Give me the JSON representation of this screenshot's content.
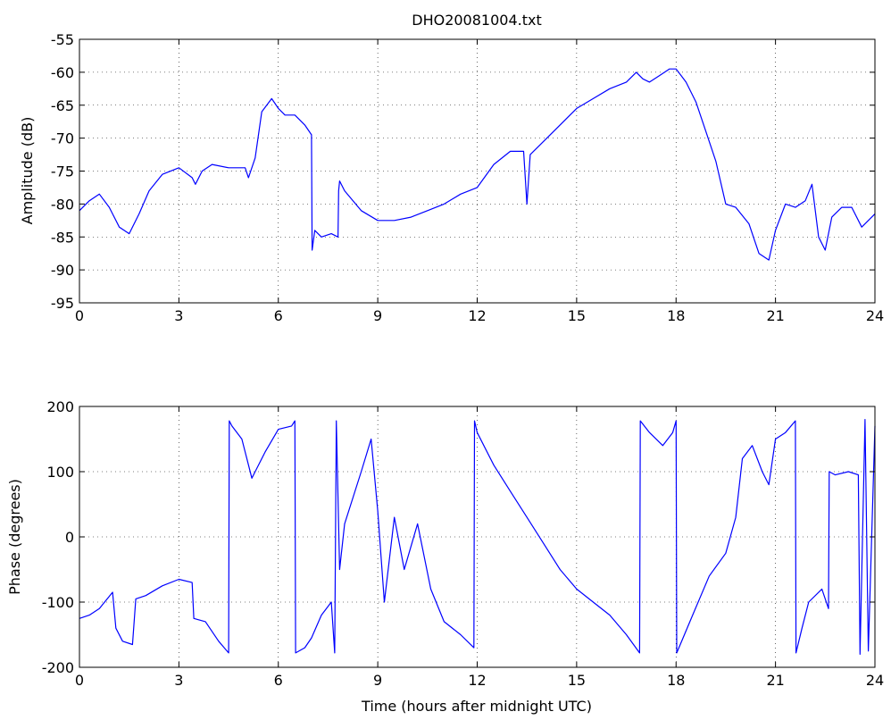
{
  "chart_data": [
    {
      "type": "line",
      "title": "DHO20081004.txt",
      "xlabel": "",
      "ylabel": "Amplitude (dB)",
      "xlim": [
        0,
        24
      ],
      "ylim": [
        -95,
        -55
      ],
      "xticks": [
        "0",
        "3",
        "6",
        "9",
        "12",
        "15",
        "18",
        "21",
        "24"
      ],
      "yticks": [
        "-95",
        "-90",
        "-85",
        "-80",
        "-75",
        "-70",
        "-65",
        "-60",
        "-55"
      ],
      "grid": true,
      "line_color": "#0000ff",
      "x": [
        0,
        0.3,
        0.6,
        0.9,
        1.2,
        1.5,
        1.8,
        2.1,
        2.5,
        3.0,
        3.4,
        3.5,
        3.7,
        4.0,
        4.5,
        5.0,
        5.1,
        5.3,
        5.5,
        5.8,
        6.0,
        6.2,
        6.5,
        6.8,
        7.0,
        7.02,
        7.1,
        7.3,
        7.6,
        7.8,
        7.82,
        7.85,
        8.0,
        8.5,
        9.0,
        9.5,
        10.0,
        10.5,
        11.0,
        11.5,
        12.0,
        12.5,
        13.0,
        13.4,
        13.5,
        13.6,
        14.0,
        14.5,
        15.0,
        15.5,
        16.0,
        16.5,
        16.8,
        17.0,
        17.2,
        17.5,
        17.8,
        18.0,
        18.3,
        18.6,
        18.9,
        19.2,
        19.5,
        19.8,
        20.2,
        20.5,
        20.8,
        21.0,
        21.3,
        21.6,
        21.9,
        22.1,
        22.3,
        22.5,
        22.7,
        23.0,
        23.3,
        23.6,
        24.0
      ],
      "y": [
        -81,
        -79.5,
        -78.5,
        -80.5,
        -83.5,
        -84.5,
        -81.5,
        -78,
        -75.5,
        -74.5,
        -76,
        -77,
        -75,
        -74,
        -74.5,
        -74.5,
        -76,
        -73,
        -66,
        -64,
        -65.5,
        -66.5,
        -66.5,
        -68,
        -69.5,
        -87,
        -84,
        -85,
        -84.5,
        -85,
        -78,
        -76.5,
        -78,
        -81,
        -82.5,
        -82.5,
        -82,
        -81,
        -80,
        -78.5,
        -77.5,
        -74,
        -72,
        -72,
        -80,
        -72.5,
        -70.5,
        -68,
        -65.5,
        -64,
        -62.5,
        -61.5,
        -60,
        -61,
        -61.5,
        -60.5,
        -59.5,
        -59.5,
        -61.5,
        -64.5,
        -69,
        -73.5,
        -80,
        -80.5,
        -83,
        -87.5,
        -88.5,
        -84,
        -80,
        -80.5,
        -79.5,
        -77,
        -85,
        -87,
        -82,
        -80.5,
        -80.5,
        -83.5,
        -81.5
      ]
    },
    {
      "type": "line",
      "title": "",
      "xlabel": "Time (hours after midnight UTC)",
      "ylabel": "Phase (degrees)",
      "xlim": [
        0,
        24
      ],
      "ylim": [
        -200,
        200
      ],
      "xticks": [
        "0",
        "3",
        "6",
        "9",
        "12",
        "15",
        "18",
        "21",
        "24"
      ],
      "yticks": [
        "-200",
        "-100",
        "0",
        "100",
        "200"
      ],
      "grid": true,
      "line_color": "#0000ff",
      "x": [
        0,
        0.3,
        0.6,
        1.0,
        1.1,
        1.3,
        1.6,
        1.7,
        2.0,
        2.5,
        3.0,
        3.4,
        3.45,
        3.8,
        4.2,
        4.5,
        4.52,
        4.6,
        4.9,
        5.2,
        5.3,
        5.6,
        6.0,
        6.4,
        6.5,
        6.52,
        6.8,
        7.0,
        7.3,
        7.6,
        7.7,
        7.75,
        7.85,
        8.0,
        8.5,
        8.8,
        9.0,
        9.2,
        9.5,
        9.8,
        10.2,
        10.6,
        11.0,
        11.5,
        11.9,
        11.92,
        12.0,
        12.5,
        13.0,
        13.5,
        14.0,
        14.5,
        15.0,
        15.5,
        16.0,
        16.5,
        16.9,
        16.92,
        17.2,
        17.6,
        17.9,
        18.0,
        18.02,
        18.5,
        19.0,
        19.5,
        19.8,
        20.0,
        20.3,
        20.6,
        20.8,
        21.0,
        21.3,
        21.6,
        21.62,
        21.8,
        22.0,
        22.4,
        22.6,
        22.62,
        22.8,
        23.2,
        23.5,
        23.55,
        23.7,
        23.8,
        24.0
      ],
      "y": [
        -125,
        -120,
        -110,
        -85,
        -140,
        -160,
        -165,
        -95,
        -90,
        -75,
        -65,
        -70,
        -125,
        -130,
        -160,
        -178,
        178,
        170,
        150,
        90,
        100,
        130,
        165,
        170,
        178,
        -178,
        -170,
        -155,
        -120,
        -100,
        -178,
        178,
        -50,
        20,
        100,
        150,
        40,
        -100,
        30,
        -50,
        20,
        -80,
        -130,
        -150,
        -170,
        178,
        160,
        110,
        70,
        30,
        -10,
        -50,
        -80,
        -100,
        -120,
        -150,
        -178,
        178,
        160,
        140,
        160,
        178,
        -178,
        -120,
        -60,
        -25,
        30,
        120,
        140,
        100,
        80,
        150,
        160,
        178,
        -178,
        -140,
        -100,
        -80,
        -110,
        100,
        95,
        100,
        95,
        -180,
        180,
        -175,
        170
      ]
    }
  ]
}
